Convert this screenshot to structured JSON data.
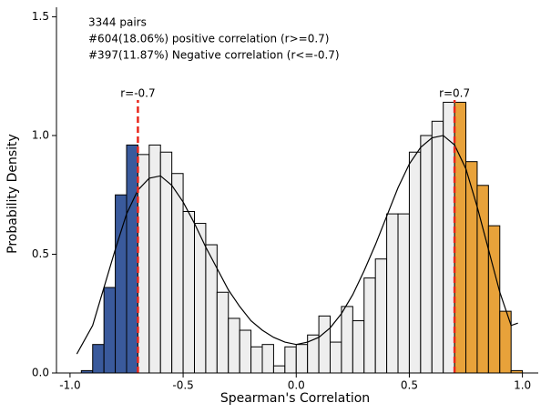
{
  "chart_data": {
    "type": "histogram",
    "xlabel": "Spearman's Correlation",
    "ylabel": "Probability Density",
    "annotations": [
      "3344 pairs",
      "#604(18.06%) positive correlation (r>=0.7)",
      "#397(11.87%) Negative correlation (r<=-0.7)"
    ],
    "bins": [
      -0.95,
      -0.9,
      -0.85,
      -0.8,
      -0.75,
      -0.7,
      -0.65,
      -0.6,
      -0.55,
      -0.5,
      -0.45,
      -0.4,
      -0.35,
      -0.3,
      -0.25,
      -0.2,
      -0.15,
      -0.1,
      -0.05,
      0.0,
      0.05,
      0.1,
      0.15,
      0.2,
      0.25,
      0.3,
      0.35,
      0.4,
      0.45,
      0.5,
      0.55,
      0.6,
      0.65,
      0.7,
      0.75,
      0.8,
      0.85,
      0.9,
      0.95,
      1.0
    ],
    "values": [
      0.01,
      0.12,
      0.36,
      0.75,
      0.96,
      0.92,
      0.96,
      0.93,
      0.84,
      0.68,
      0.63,
      0.54,
      0.34,
      0.23,
      0.18,
      0.11,
      0.12,
      0.03,
      0.11,
      0.12,
      0.16,
      0.24,
      0.13,
      0.28,
      0.22,
      0.4,
      0.48,
      0.67,
      0.67,
      0.93,
      1.0,
      1.06,
      1.14,
      1.14,
      0.89,
      0.79,
      0.62,
      0.26,
      0.01
    ],
    "bar_colors": [
      "#3a5a9c",
      "#3a5a9c",
      "#3a5a9c",
      "#3a5a9c",
      "#3a5a9c",
      "#eeeeee",
      "#eeeeee",
      "#eeeeee",
      "#eeeeee",
      "#eeeeee",
      "#eeeeee",
      "#eeeeee",
      "#eeeeee",
      "#eeeeee",
      "#eeeeee",
      "#eeeeee",
      "#eeeeee",
      "#eeeeee",
      "#eeeeee",
      "#eeeeee",
      "#eeeeee",
      "#eeeeee",
      "#eeeeee",
      "#eeeeee",
      "#eeeeee",
      "#eeeeee",
      "#eeeeee",
      "#eeeeee",
      "#eeeeee",
      "#eeeeee",
      "#eeeeee",
      "#eeeeee",
      "#eeeeee",
      "#e8a23a",
      "#e8a23a",
      "#e8a23a",
      "#e8a23a",
      "#e8a23a",
      "#e8a23a"
    ],
    "curve": {
      "color": "#000000",
      "x": [
        -0.97,
        -0.9,
        -0.85,
        -0.8,
        -0.75,
        -0.7,
        -0.65,
        -0.6,
        -0.55,
        -0.5,
        -0.45,
        -0.4,
        -0.35,
        -0.3,
        -0.25,
        -0.2,
        -0.15,
        -0.1,
        -0.05,
        0.0,
        0.05,
        0.1,
        0.15,
        0.2,
        0.25,
        0.3,
        0.35,
        0.4,
        0.45,
        0.5,
        0.55,
        0.6,
        0.65,
        0.7,
        0.75,
        0.8,
        0.85,
        0.9,
        0.95,
        0.98
      ],
      "y": [
        0.08,
        0.2,
        0.36,
        0.52,
        0.67,
        0.77,
        0.82,
        0.83,
        0.79,
        0.72,
        0.63,
        0.53,
        0.44,
        0.35,
        0.28,
        0.22,
        0.18,
        0.15,
        0.13,
        0.12,
        0.13,
        0.15,
        0.19,
        0.25,
        0.33,
        0.43,
        0.54,
        0.66,
        0.78,
        0.88,
        0.95,
        0.99,
        1.0,
        0.96,
        0.86,
        0.7,
        0.52,
        0.34,
        0.2,
        0.21
      ]
    },
    "vlines": [
      {
        "x": -0.7,
        "label": "r=-0.7",
        "color": "#e8261c"
      },
      {
        "x": 0.7,
        "label": "r=0.7",
        "color": "#e8261c"
      }
    ],
    "xlim": [
      -1.06,
      1.07
    ],
    "ylim": [
      0,
      1.54
    ],
    "xticks": [
      {
        "value": -1.0,
        "label": "-1.0"
      },
      {
        "value": -0.5,
        "label": "-0.5"
      },
      {
        "value": 0.0,
        "label": "0.0"
      },
      {
        "value": 0.5,
        "label": "0.5"
      },
      {
        "value": 1.0,
        "label": "1.0"
      }
    ],
    "yticks": [
      {
        "value": 0.0,
        "label": "0.0"
      },
      {
        "value": 0.5,
        "label": "0.5"
      },
      {
        "value": 1.0,
        "label": "1.0"
      },
      {
        "value": 1.5,
        "label": "1.5"
      }
    ],
    "grid": false
  }
}
